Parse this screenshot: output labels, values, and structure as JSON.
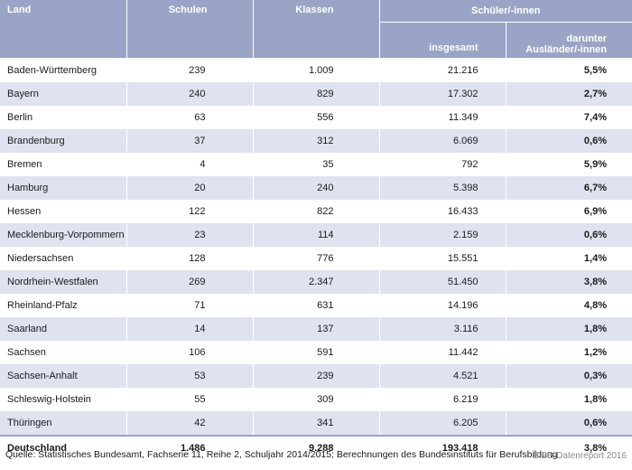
{
  "header": {
    "land": "Land",
    "schulen": "Schulen",
    "klassen": "Klassen",
    "schueler_group": "Schüler/-innen",
    "insgesamt": "insgesamt",
    "auslaender_line1": "darunter",
    "auslaender_line2": "Ausländer/-innen"
  },
  "rows": [
    {
      "land": "Baden-Württemberg",
      "schulen": "239",
      "klassen": "1.009",
      "insgesamt": "21.216",
      "auslaender": "5,5%"
    },
    {
      "land": "Bayern",
      "schulen": "240",
      "klassen": "829",
      "insgesamt": "17.302",
      "auslaender": "2,7%"
    },
    {
      "land": "Berlin",
      "schulen": "63",
      "klassen": "556",
      "insgesamt": "11.349",
      "auslaender": "7,4%"
    },
    {
      "land": "Brandenburg",
      "schulen": "37",
      "klassen": "312",
      "insgesamt": "6.069",
      "auslaender": "0,6%"
    },
    {
      "land": "Bremen",
      "schulen": "4",
      "klassen": "35",
      "insgesamt": "792",
      "auslaender": "5,9%"
    },
    {
      "land": "Hamburg",
      "schulen": "20",
      "klassen": "240",
      "insgesamt": "5.398",
      "auslaender": "6,7%"
    },
    {
      "land": "Hessen",
      "schulen": "122",
      "klassen": "822",
      "insgesamt": "16.433",
      "auslaender": "6,9%"
    },
    {
      "land": "Mecklenburg-Vorpommern",
      "schulen": "23",
      "klassen": "114",
      "insgesamt": "2.159",
      "auslaender": "0,6%"
    },
    {
      "land": "Niedersachsen",
      "schulen": "128",
      "klassen": "776",
      "insgesamt": "15.551",
      "auslaender": "1,4%"
    },
    {
      "land": "Nordrhein-Westfalen",
      "schulen": "269",
      "klassen": "2.347",
      "insgesamt": "51.450",
      "auslaender": "3,8%"
    },
    {
      "land": "Rheinland-Pfalz",
      "schulen": "71",
      "klassen": "631",
      "insgesamt": "14.196",
      "auslaender": "4,8%"
    },
    {
      "land": "Saarland",
      "schulen": "14",
      "klassen": "137",
      "insgesamt": "3.116",
      "auslaender": "1,8%"
    },
    {
      "land": "Sachsen",
      "schulen": "106",
      "klassen": "591",
      "insgesamt": "11.442",
      "auslaender": "1,2%"
    },
    {
      "land": "Sachsen-Anhalt",
      "schulen": "53",
      "klassen": "239",
      "insgesamt": "4.521",
      "auslaender": "0,3%"
    },
    {
      "land": "Schleswig-Holstein",
      "schulen": "55",
      "klassen": "309",
      "insgesamt": "6.219",
      "auslaender": "1,8%"
    },
    {
      "land": "Thüringen",
      "schulen": "42",
      "klassen": "341",
      "insgesamt": "6.205",
      "auslaender": "0,6%"
    }
  ],
  "total": {
    "land": "Deutschland",
    "schulen": "1.486",
    "klassen": "9.288",
    "insgesamt": "193.418",
    "auslaender": "3,8%"
  },
  "footer": {
    "source": "Quelle: Statistisches Bundesamt, Fachserie 11, Reihe 2, Schuljahr 2014/2015; Berechnungen des Bundesinstituts für Berufsbildung",
    "credit": "BIBB-Datenreport 2016"
  },
  "colors": {
    "header_bg": "#9aa4c6",
    "row_alt_bg": "#dfe3f0"
  }
}
